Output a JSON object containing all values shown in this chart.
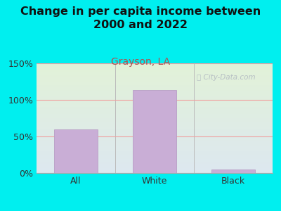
{
  "title": "Change in per capita income between\n2000 and 2022",
  "subtitle": "Grayson, LA",
  "categories": [
    "All",
    "White",
    "Black"
  ],
  "values": [
    60,
    113,
    5
  ],
  "bar_color": "#c9aed6",
  "bar_edge_color": "#b89dc5",
  "background_outer": "#00efef",
  "grad_top": "#e2f2d8",
  "grad_bottom": "#dde8f0",
  "title_fontsize": 11.5,
  "subtitle_fontsize": 10,
  "subtitle_color": "#b05050",
  "tick_label_fontsize": 9,
  "axis_label_color": "#333333",
  "grid_color": "#f0a0a0",
  "watermark_text": "City-Data.com",
  "watermark_color": "#b0b8c0",
  "ylim": [
    0,
    150
  ],
  "yticks": [
    0,
    50,
    100,
    150
  ],
  "ytick_labels": [
    "0%",
    "50%",
    "100%",
    "150%"
  ]
}
